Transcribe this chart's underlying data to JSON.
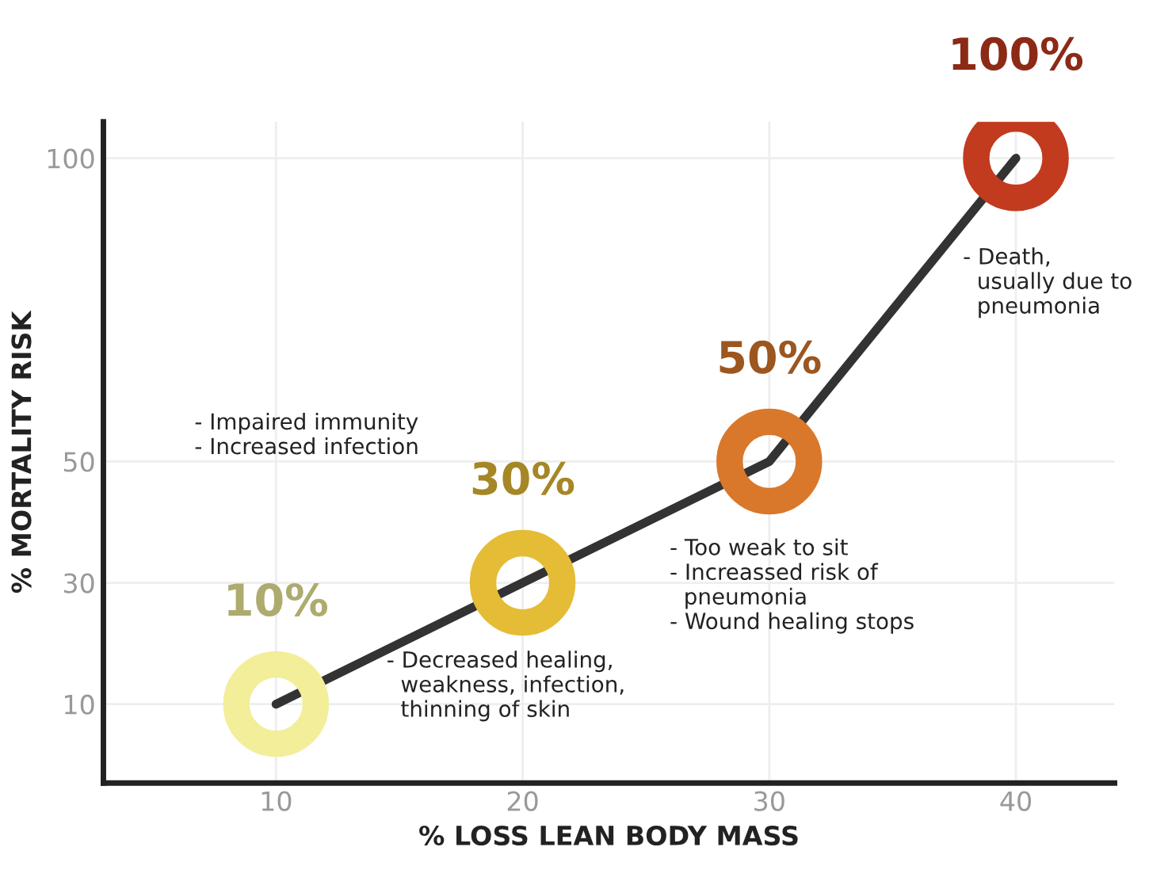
{
  "chart_data": {
    "type": "line",
    "xlabel": "% LOSS LEAN BODY MASS",
    "ylabel": "% MORTALITY RISK",
    "x": [
      10,
      20,
      30,
      40
    ],
    "series": [
      {
        "color": "#333333",
        "values": [
          10,
          30,
          50,
          100
        ],
        "colors": [
          "#f2ee9a",
          "#e5bc35",
          "#d9782b",
          "#c23b1e"
        ],
        "value_labels": [
          "10%",
          "30%",
          "50%",
          "100%"
        ]
      }
    ],
    "xlim": [
      3,
      44
    ],
    "ylim": [
      -3,
      106
    ],
    "xticks": [
      10,
      20,
      30,
      40
    ],
    "yticks": [
      10,
      30,
      50,
      100
    ],
    "grid": true,
    "line_style": "solid",
    "legend": false,
    "annotations": [
      "- Impaired immunity\n- Increased infection",
      "- Decreased healing,\n  weakness, infection,\n  thinning of skin",
      "- Too weak to sit\n- Increassed risk of\n  pneumonia\n- Wound healing stops",
      "- Death,\n  usually due to\n  pneumonia"
    ]
  }
}
